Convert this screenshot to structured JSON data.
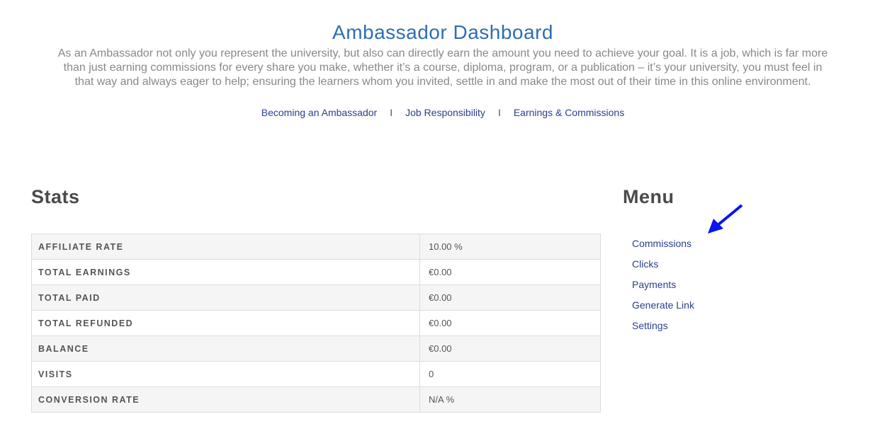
{
  "header": {
    "title": "Ambassador Dashboard",
    "intro": "As an Ambassador not only you represent the university, but also can directly earn the amount you need to achieve your goal. It is a job, which is far more than just earning commissions for every share you make, whether it’s a course, diploma, program, or a publication – it’s your university, you must feel in that way and always eager to help; ensuring the learners whom you invited, settle in and make the most out of their time in this online environment.",
    "links": [
      "Becoming an Ambassador",
      "Job Responsibility",
      "Earnings & Commissions"
    ],
    "separator": "I"
  },
  "stats": {
    "heading": "Stats",
    "rows": [
      {
        "label": "AFFILIATE RATE",
        "value": "10.00 %"
      },
      {
        "label": "TOTAL EARNINGS",
        "value": "€0.00"
      },
      {
        "label": "TOTAL PAID",
        "value": "€0.00"
      },
      {
        "label": "TOTAL REFUNDED",
        "value": "€0.00"
      },
      {
        "label": "BALANCE",
        "value": "€0.00"
      },
      {
        "label": "VISITS",
        "value": "0"
      },
      {
        "label": "CONVERSION RATE",
        "value": "N/A %"
      }
    ]
  },
  "menu": {
    "heading": "Menu",
    "items": [
      "Commissions",
      "Clicks",
      "Payments",
      "Generate Link",
      "Settings"
    ]
  },
  "annotation": {
    "icon": "arrow-icon",
    "color": "#0a14f0"
  }
}
